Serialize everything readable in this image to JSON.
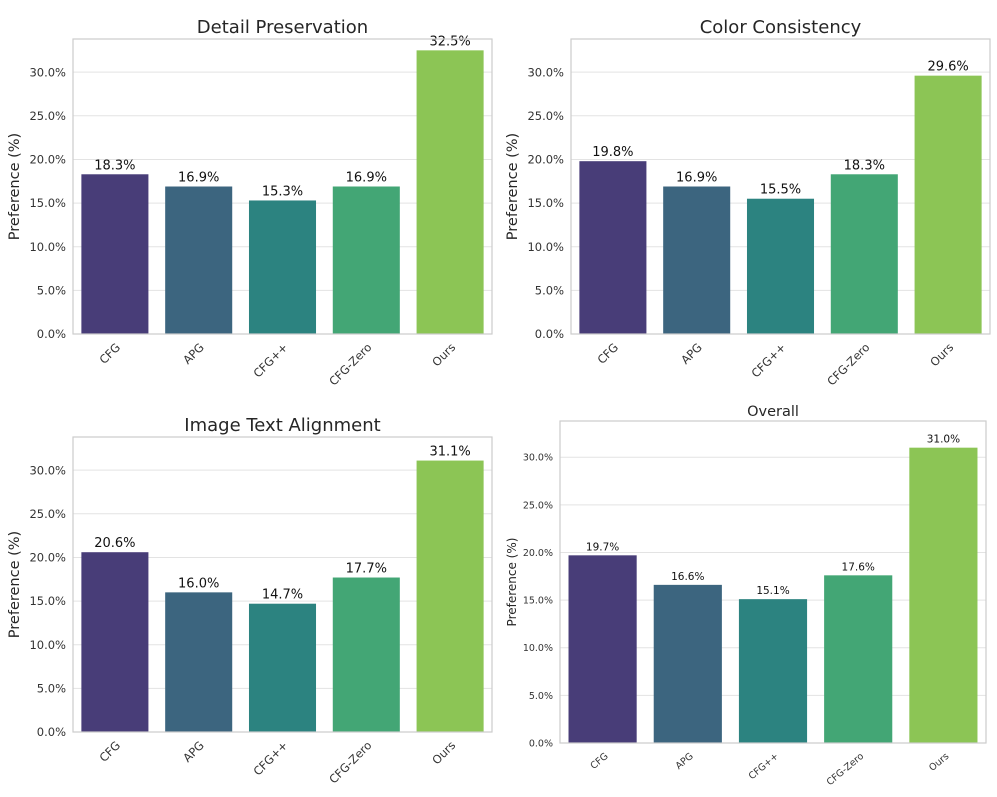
{
  "chart_data": [
    {
      "type": "bar",
      "title": "Detail Preservation",
      "xlabel": "",
      "ylabel": "Preference (%)",
      "categories": [
        "CFG",
        "APG",
        "CFG++",
        "CFG-Zero",
        "Ours"
      ],
      "values": [
        18.3,
        16.9,
        15.3,
        16.9,
        32.5
      ],
      "value_labels": [
        "18.3%",
        "16.9%",
        "15.3%",
        "16.9%",
        "32.5%"
      ],
      "ylim": [
        0,
        33.8
      ],
      "yticks": [
        0,
        5,
        10,
        15,
        20,
        25,
        30
      ],
      "ytick_labels": [
        "0.0%",
        "5.0%",
        "10.0%",
        "15.0%",
        "20.0%",
        "25.0%",
        "30.0%"
      ],
      "grid": true,
      "colors": [
        "#483d78",
        "#3c657f",
        "#2c8380",
        "#43a675",
        "#8cc555"
      ]
    },
    {
      "type": "bar",
      "title": "Color Consistency",
      "xlabel": "",
      "ylabel": "Preference (%)",
      "categories": [
        "CFG",
        "APG",
        "CFG++",
        "CFG-Zero",
        "Ours"
      ],
      "values": [
        19.8,
        16.9,
        15.5,
        18.3,
        29.6
      ],
      "value_labels": [
        "19.8%",
        "16.9%",
        "15.5%",
        "18.3%",
        "29.6%"
      ],
      "ylim": [
        0,
        33.8
      ],
      "yticks": [
        0,
        5,
        10,
        15,
        20,
        25,
        30
      ],
      "ytick_labels": [
        "0.0%",
        "5.0%",
        "10.0%",
        "15.0%",
        "20.0%",
        "25.0%",
        "30.0%"
      ],
      "grid": true,
      "colors": [
        "#483d78",
        "#3c657f",
        "#2c8380",
        "#43a675",
        "#8cc555"
      ]
    },
    {
      "type": "bar",
      "title": "Image Text Alignment",
      "xlabel": "",
      "ylabel": "Preference (%)",
      "categories": [
        "CFG",
        "APG",
        "CFG++",
        "CFG-Zero",
        "Ours"
      ],
      "values": [
        20.6,
        16.0,
        14.7,
        17.7,
        31.1
      ],
      "value_labels": [
        "20.6%",
        "16.0%",
        "14.7%",
        "17.7%",
        "31.1%"
      ],
      "ylim": [
        0,
        33.8
      ],
      "yticks": [
        0,
        5,
        10,
        15,
        20,
        25,
        30
      ],
      "ytick_labels": [
        "0.0%",
        "5.0%",
        "10.0%",
        "15.0%",
        "20.0%",
        "25.0%",
        "30.0%"
      ],
      "grid": true,
      "colors": [
        "#483d78",
        "#3c657f",
        "#2c8380",
        "#43a675",
        "#8cc555"
      ]
    },
    {
      "type": "bar",
      "title": "Overall",
      "xlabel": "",
      "ylabel": "Preference (%)",
      "categories": [
        "CFG",
        "APG",
        "CFG++",
        "CFG-Zero",
        "Ours"
      ],
      "values": [
        19.7,
        16.6,
        15.1,
        17.6,
        31.0
      ],
      "value_labels": [
        "19.7%",
        "16.6%",
        "15.1%",
        "17.6%",
        "31.0%"
      ],
      "ylim": [
        0,
        33.8
      ],
      "yticks": [
        0,
        5,
        10,
        15,
        20,
        25,
        30
      ],
      "ytick_labels": [
        "0.0%",
        "5.0%",
        "10.0%",
        "15.0%",
        "20.0%",
        "25.0%",
        "30.0%"
      ],
      "grid": true,
      "colors": [
        "#483d78",
        "#3c657f",
        "#2c8380",
        "#43a675",
        "#8cc555"
      ]
    }
  ]
}
